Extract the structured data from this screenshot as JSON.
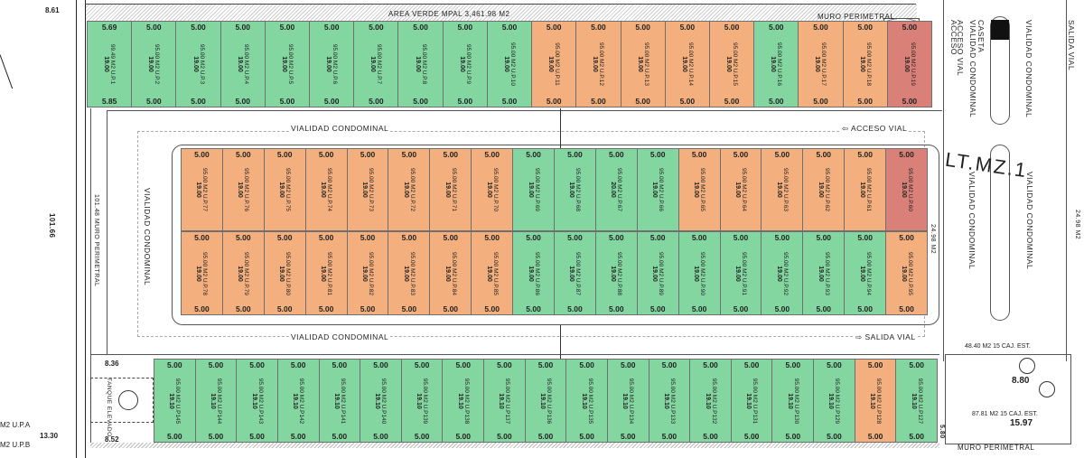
{
  "colors": {
    "green": "#84d6a1",
    "orange": "#f3b07e",
    "red": "#d98178",
    "line": "#6f6f6f"
  },
  "lot_unit": "95.00 M2 U.P.",
  "lot_unit_row4": "95.00 M2 U.P",
  "rows": [
    {
      "id": "row-1",
      "top_dim": "5.00",
      "bottom_dim": "5.00",
      "depth": "19.00",
      "lots": [
        {
          "num": "1",
          "color": "green",
          "top": "5.69",
          "bottom": "5.85",
          "area": "99.49 M2",
          "area_prefix": "U.P."
        },
        {
          "num": "2",
          "color": "green"
        },
        {
          "num": "3",
          "color": "green"
        },
        {
          "num": "4",
          "color": "green"
        },
        {
          "num": "5",
          "color": "green"
        },
        {
          "num": "6",
          "color": "green"
        },
        {
          "num": "7",
          "color": "green"
        },
        {
          "num": "8",
          "color": "green"
        },
        {
          "num": "9",
          "color": "green"
        },
        {
          "num": "10",
          "color": "green"
        },
        {
          "num": "11",
          "color": "orange"
        },
        {
          "num": "12",
          "color": "orange"
        },
        {
          "num": "13",
          "color": "orange"
        },
        {
          "num": "14",
          "color": "orange"
        },
        {
          "num": "15",
          "color": "orange"
        },
        {
          "num": "16",
          "color": "green"
        },
        {
          "num": "17",
          "color": "orange"
        },
        {
          "num": "18",
          "color": "orange"
        },
        {
          "num": "19",
          "color": "red"
        }
      ]
    },
    {
      "id": "row-2",
      "top_dim": "5.00",
      "bottom_dim": "",
      "depth": "19.00",
      "lots": [
        {
          "num": "77",
          "color": "orange"
        },
        {
          "num": "76",
          "color": "orange"
        },
        {
          "num": "75",
          "color": "orange"
        },
        {
          "num": "74",
          "color": "orange"
        },
        {
          "num": "73",
          "color": "orange"
        },
        {
          "num": "72",
          "color": "orange"
        },
        {
          "num": "71",
          "color": "orange"
        },
        {
          "num": "70",
          "color": "orange"
        },
        {
          "num": "69",
          "color": "green"
        },
        {
          "num": "68",
          "color": "green"
        },
        {
          "num": "67",
          "color": "green",
          "depth": "20.00"
        },
        {
          "num": "66",
          "color": "green"
        },
        {
          "num": "65",
          "color": "orange"
        },
        {
          "num": "64",
          "color": "orange"
        },
        {
          "num": "63",
          "color": "orange"
        },
        {
          "num": "62",
          "color": "orange"
        },
        {
          "num": "61",
          "color": "orange"
        },
        {
          "num": "60",
          "color": "red"
        }
      ]
    },
    {
      "id": "row-3",
      "top_dim": "5.00",
      "bottom_dim": "5.00",
      "depth": "19.00",
      "lots": [
        {
          "num": "78",
          "color": "orange"
        },
        {
          "num": "79",
          "color": "orange"
        },
        {
          "num": "80",
          "color": "orange"
        },
        {
          "num": "81",
          "color": "orange"
        },
        {
          "num": "82",
          "color": "orange"
        },
        {
          "num": "83",
          "color": "orange"
        },
        {
          "num": "84",
          "color": "orange"
        },
        {
          "num": "85",
          "color": "orange"
        },
        {
          "num": "86",
          "color": "green"
        },
        {
          "num": "87",
          "color": "green"
        },
        {
          "num": "88",
          "color": "green"
        },
        {
          "num": "89",
          "color": "green"
        },
        {
          "num": "90",
          "color": "green"
        },
        {
          "num": "91",
          "color": "green"
        },
        {
          "num": "92",
          "color": "green"
        },
        {
          "num": "93",
          "color": "green"
        },
        {
          "num": "94",
          "color": "green"
        },
        {
          "num": "95",
          "color": "orange"
        }
      ]
    },
    {
      "id": "row-4",
      "top_dim": "5.00",
      "bottom_dim": "5.00",
      "depth": "19.10",
      "lots": [
        {
          "num": "145",
          "color": "green"
        },
        {
          "num": "144",
          "color": "green"
        },
        {
          "num": "143",
          "color": "green"
        },
        {
          "num": "142",
          "color": "green"
        },
        {
          "num": "141",
          "color": "green"
        },
        {
          "num": "140",
          "color": "green"
        },
        {
          "num": "139",
          "color": "green"
        },
        {
          "num": "138",
          "color": "green"
        },
        {
          "num": "137",
          "color": "green"
        },
        {
          "num": "136",
          "color": "green"
        },
        {
          "num": "135",
          "color": "green"
        },
        {
          "num": "134",
          "color": "green"
        },
        {
          "num": "133",
          "color": "green"
        },
        {
          "num": "132",
          "color": "green"
        },
        {
          "num": "131",
          "color": "green"
        },
        {
          "num": "130",
          "color": "green"
        },
        {
          "num": "129",
          "color": "green"
        },
        {
          "num": "128",
          "color": "orange"
        },
        {
          "num": "127",
          "color": "green"
        }
      ]
    }
  ],
  "labels": {
    "area_verde": "AREA VERDE MPAL 3,461.98 M2",
    "muro_perimetral_top": "MURO PERIMETRAL",
    "muro_perimetral_bottom": "MURO PERIMETRAL",
    "vialidad_top": "VIALIDAD CONDOMINAL",
    "vialidad_bottom": "VIALIDAD CONDOMINAL",
    "acceso_vial": "⇦ ACCESO VIAL",
    "salida_vial": "⇨ SALIDA VIAL",
    "vialidad_left": "VIALIDAD CONDOMINAL",
    "vialidad_right": "VIALIDAD CONDOMINAL",
    "vialidad_right2": "VIALIDAD CONDOMINAL",
    "acceso": "ACCESO",
    "acceso_vial_v": "ACCESO VIAL",
    "caseta": "CASETA",
    "vialidad_far_right": "VIALIDAD CONDOMINAL",
    "salida_vial_v": "SALIDA VIAL",
    "vialidad_far_right2": "VIALIDAD CONDOMINAL",
    "lt_mz": "LT.MZ.1",
    "muro_left": "101.48 MURO PERIMETRAL",
    "dim_101": "101.66",
    "up_a": "M2 U.P.A",
    "up_b": "M2 U.P.B",
    "dim_861": "8.61",
    "dim_836": "8.36",
    "dim_852": "8.52",
    "dim_1330": "13.30",
    "tanque": "TANQUE ELEVADO",
    "dim_4840": "48.40 M2 15 CAJ. EST.",
    "dim_8781": "87.81 M2 15 CAJ. EST.",
    "dim_1597": "15.97",
    "dim_880": "8.80",
    "dim_2498": "24.98 M2",
    "dim_2498b": "24.98 M2",
    "dim_580": "5.80"
  }
}
